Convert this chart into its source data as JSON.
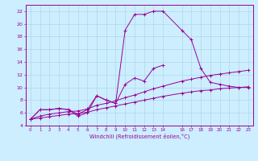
{
  "title": "",
  "xlabel": "Windchill (Refroidissement éolien,°C)",
  "background_color": "#cceeff",
  "grid_color": "#b0d8e8",
  "line_color": "#990099",
  "xlim": [
    -0.5,
    23.5
  ],
  "ylim": [
    4,
    23
  ],
  "curve1_x": [
    0,
    1,
    2,
    3,
    4,
    5,
    6,
    7,
    8,
    9,
    10,
    11,
    12,
    13,
    14,
    16,
    17,
    18,
    19,
    20,
    21,
    22,
    23
  ],
  "curve1_y": [
    5.0,
    6.5,
    6.5,
    6.7,
    6.5,
    5.8,
    6.5,
    8.7,
    8.0,
    7.5,
    19.0,
    21.5,
    21.5,
    22.0,
    22.0,
    19.0,
    17.5,
    13.0,
    10.8,
    10.5,
    10.2,
    10.0,
    10.0
  ],
  "curve2_x": [
    0,
    1,
    2,
    3,
    4,
    5,
    6,
    7,
    8,
    9,
    10,
    11,
    12,
    13,
    14
  ],
  "curve2_y": [
    5.0,
    6.5,
    6.5,
    6.7,
    6.5,
    5.5,
    6.0,
    8.7,
    8.0,
    7.5,
    10.5,
    11.5,
    11.0,
    13.0,
    13.5
  ],
  "curve3_x": [
    0,
    1,
    2,
    3,
    4,
    5,
    6,
    7,
    8,
    9,
    10,
    11,
    12,
    13,
    14,
    16,
    17,
    18,
    19,
    20,
    21,
    22,
    23
  ],
  "curve3_y": [
    5.0,
    5.5,
    5.8,
    6.0,
    6.2,
    6.3,
    6.6,
    7.2,
    7.5,
    7.9,
    8.4,
    8.8,
    9.3,
    9.8,
    10.2,
    11.0,
    11.3,
    11.6,
    11.9,
    12.1,
    12.3,
    12.5,
    12.7
  ],
  "curve4_x": [
    0,
    1,
    2,
    3,
    4,
    5,
    6,
    7,
    8,
    9,
    10,
    11,
    12,
    13,
    14,
    16,
    17,
    18,
    19,
    20,
    21,
    22,
    23
  ],
  "curve4_y": [
    5.0,
    5.2,
    5.4,
    5.6,
    5.8,
    5.9,
    6.1,
    6.5,
    6.8,
    7.1,
    7.4,
    7.7,
    8.0,
    8.3,
    8.6,
    9.1,
    9.3,
    9.5,
    9.6,
    9.8,
    9.9,
    10.0,
    10.1
  ],
  "ytick_vals": [
    4,
    6,
    8,
    10,
    12,
    14,
    16,
    18,
    20,
    22
  ],
  "ytick_labels": [
    "4",
    "6",
    "8",
    "10",
    "12",
    "14",
    "16",
    "18",
    "20",
    "22"
  ],
  "xtick_vals": [
    0,
    1,
    2,
    3,
    4,
    5,
    6,
    7,
    8,
    9,
    10,
    11,
    12,
    13,
    14,
    16,
    17,
    18,
    19,
    20,
    21,
    22,
    23
  ],
  "xtick_labels": [
    "0",
    "1",
    "2",
    "3",
    "4",
    "5",
    "6",
    "7",
    "8",
    "9",
    "10",
    "11",
    "12",
    "13",
    "14",
    "16",
    "17",
    "18",
    "19",
    "20",
    "21",
    "22",
    "23"
  ]
}
